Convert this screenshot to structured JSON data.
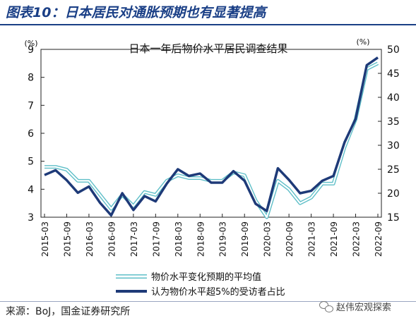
{
  "figure_title": "图表10：日本居民对通胀预期也有显著提高",
  "source": "来源：BoJ，国金证券研究所",
  "watermark": "赵伟宏观探索",
  "chart_data": {
    "type": "line",
    "title": "日本一年后物价水平居民调查结果",
    "y_left_unit": "(%)",
    "y_right_unit": "(%)",
    "y_left_lim": [
      3,
      9
    ],
    "y_right_lim": [
      15,
      50
    ],
    "y_left_ticks": [
      "3",
      "4",
      "5",
      "6",
      "7",
      "8",
      "9"
    ],
    "y_right_ticks": [
      "15",
      "20",
      "25",
      "30",
      "35",
      "40",
      "45",
      "50"
    ],
    "x_tick_labels": [
      "2015-03",
      "2015-09",
      "2016-03",
      "2016-09",
      "2017-03",
      "2017-09",
      "2018-03",
      "2018-09",
      "2019-03",
      "2019-09",
      "2020-03",
      "2020-09",
      "2021-03",
      "2021-09",
      "2022-03",
      "2022-09"
    ],
    "x": [
      "2015-03",
      "2015-06",
      "2015-09",
      "2015-12",
      "2016-03",
      "2016-06",
      "2016-09",
      "2016-12",
      "2017-03",
      "2017-06",
      "2017-09",
      "2017-12",
      "2018-03",
      "2018-06",
      "2018-09",
      "2018-12",
      "2019-03",
      "2019-06",
      "2019-09",
      "2019-12",
      "2020-03",
      "2020-06",
      "2020-09",
      "2020-12",
      "2021-03",
      "2021-06",
      "2021-09",
      "2021-12",
      "2022-03",
      "2022-06",
      "2022-09"
    ],
    "series": [
      {
        "name": "物价水平变化预期的平均值",
        "axis": "left",
        "color": "#5fbfc8",
        "values": [
          4.8,
          4.8,
          4.7,
          4.3,
          4.3,
          3.8,
          3.3,
          3.8,
          3.4,
          3.9,
          3.8,
          4.3,
          4.5,
          4.4,
          4.4,
          4.3,
          4.3,
          4.6,
          4.5,
          3.6,
          3.0,
          4.3,
          4.0,
          3.5,
          3.7,
          4.2,
          4.2,
          5.5,
          6.5,
          8.3,
          8.5
        ]
      },
      {
        "name": "认为物价水平超5%的受访者占比",
        "axis": "right",
        "color": "#1e3a78",
        "values": [
          23.8,
          24.8,
          22.7,
          20.1,
          21.4,
          18.0,
          15.4,
          20.0,
          16.5,
          19.4,
          18.3,
          22.0,
          25.0,
          23.6,
          24.1,
          22.2,
          22.2,
          24.6,
          22.6,
          17.8,
          16.3,
          25.2,
          22.8,
          20.0,
          20.5,
          22.6,
          23.6,
          30.6,
          35.5,
          46.7,
          48.3
        ]
      }
    ],
    "legend_position": "bottom"
  }
}
